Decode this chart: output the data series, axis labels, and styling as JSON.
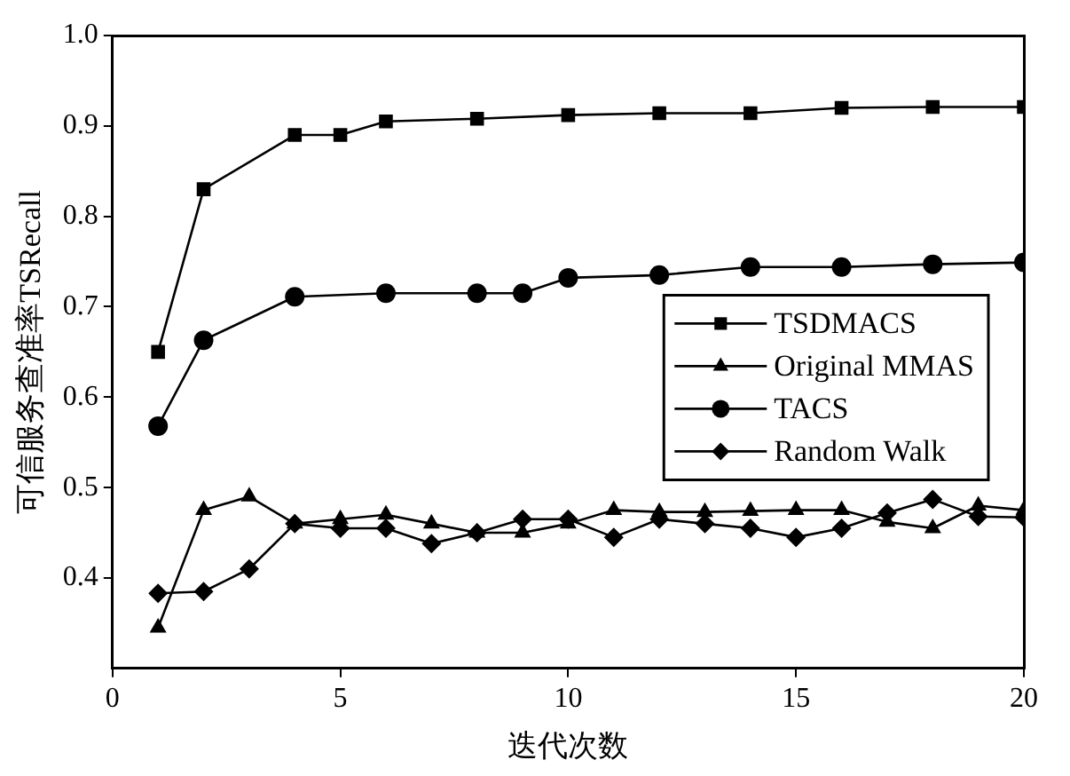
{
  "chart_data": {
    "type": "line",
    "xlabel": "迭代次数",
    "ylabel": "可信服务查准率TSRecall",
    "xlim": [
      0,
      20
    ],
    "xticks": [
      0,
      5,
      10,
      15,
      20
    ],
    "ylim": [
      0.3,
      1.0
    ],
    "yticks": [
      0.4,
      0.5,
      0.6,
      0.7,
      0.8,
      0.9,
      {
        "value": 1,
        "label": "1.0"
      }
    ],
    "legend": "right",
    "grid": false,
    "series": [
      {
        "name": "TSDMACS",
        "color": "#000000",
        "marker": "square",
        "x": [
          1,
          2,
          4,
          5,
          6,
          8,
          10,
          12,
          14,
          16,
          18,
          20
        ],
        "values": [
          0.65,
          0.83,
          0.89,
          0.89,
          0.905,
          0.908,
          0.912,
          0.914,
          0.914,
          0.92,
          0.921,
          0.921
        ]
      },
      {
        "name": "Original MMAS",
        "color": "#000000",
        "marker": "triangle",
        "x": [
          1,
          2,
          3,
          4,
          5,
          6,
          7,
          8,
          9,
          10,
          11,
          12,
          13,
          14,
          15,
          16,
          17,
          18,
          19,
          20
        ],
        "values": [
          0.345,
          0.475,
          0.49,
          0.46,
          0.465,
          0.47,
          0.46,
          0.45,
          0.45,
          0.46,
          0.475,
          0.473,
          0.473,
          0.474,
          0.475,
          0.475,
          0.462,
          0.455,
          0.48,
          0.475
        ]
      },
      {
        "name": "TACS",
        "color": "#000000",
        "marker": "circle",
        "x": [
          1,
          2,
          4,
          6,
          8,
          9,
          10,
          12,
          14,
          16,
          18,
          20
        ],
        "values": [
          0.568,
          0.663,
          0.711,
          0.715,
          0.715,
          0.715,
          0.732,
          0.735,
          0.744,
          0.744,
          0.747,
          0.749
        ]
      },
      {
        "name": "Random Walk",
        "color": "#000000",
        "marker": "diamond",
        "x": [
          1,
          2,
          3,
          4,
          5,
          6,
          7,
          8,
          9,
          10,
          11,
          12,
          13,
          14,
          15,
          16,
          17,
          18,
          19,
          20
        ],
        "values": [
          0.383,
          0.385,
          0.41,
          0.46,
          0.455,
          0.455,
          0.438,
          0.45,
          0.465,
          0.465,
          0.445,
          0.465,
          0.46,
          0.455,
          0.445,
          0.455,
          0.472,
          0.487,
          0.468,
          0.467
        ]
      }
    ]
  }
}
